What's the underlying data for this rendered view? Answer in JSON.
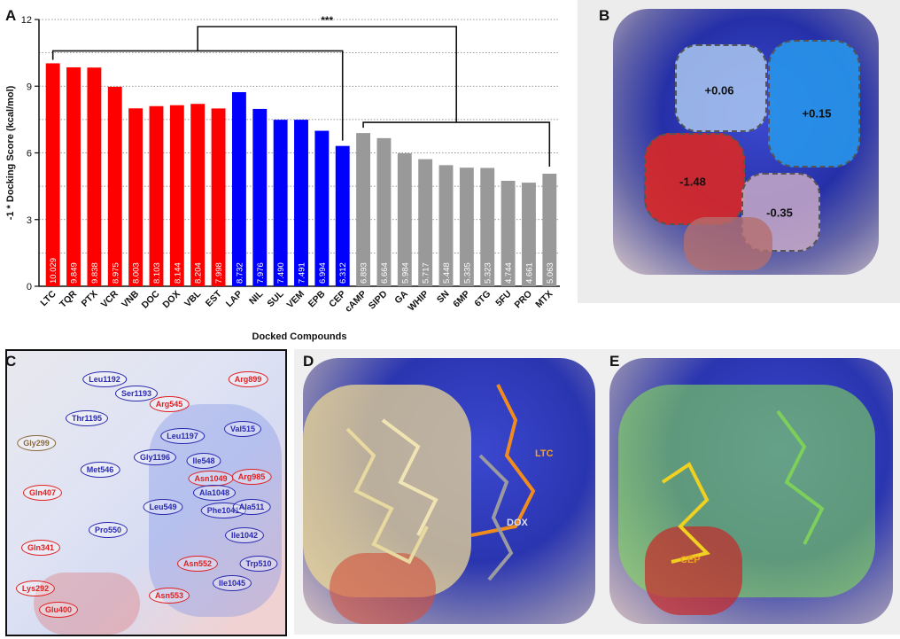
{
  "panels": {
    "a": "A",
    "b": "B",
    "c": "C",
    "d": "D",
    "e": "E"
  },
  "significance": "***",
  "chart_data": {
    "type": "bar",
    "ylabel": "-1 * Docking Score (kcal/mol)",
    "xlabel": "Docked Compounds",
    "ylim": [
      0,
      12
    ],
    "yticks": [
      "0",
      "3",
      "6",
      "9",
      "12"
    ],
    "grid": "horizontal dotted",
    "categories": [
      "LTC",
      "TQR",
      "PTX",
      "VCR",
      "VNB",
      "DOC",
      "DOX",
      "VBL",
      "EST",
      "LAP",
      "NIL",
      "SUL",
      "VEM",
      "EPB",
      "CEP",
      "cAMP",
      "SIPD",
      "GA",
      "WHIP",
      "SN",
      "6MP",
      "6TG",
      "5FU",
      "PRO",
      "MTX"
    ],
    "values": [
      10.029,
      9.849,
      9.838,
      8.975,
      8.003,
      8.103,
      8.144,
      8.204,
      7.998,
      8.732,
      7.976,
      7.49,
      7.491,
      6.994,
      6.312,
      6.893,
      6.664,
      5.984,
      5.717,
      5.448,
      5.335,
      5.323,
      4.744,
      4.661,
      5.063
    ],
    "value_labels": [
      "10.029",
      "9.849",
      "9.838",
      "8.975",
      "8.003",
      "8.103",
      "8.144",
      "8.204",
      "7.998",
      "8.732",
      "7.976",
      "7.490",
      "7.491",
      "6.994",
      "6.312",
      "6.893",
      "6.664",
      "5.984",
      "5.717",
      "5.448",
      "5.335",
      "5.323",
      "4.744",
      "4.661",
      "5.063"
    ],
    "group_colors": [
      "#ff0000",
      "#ff0000",
      "#ff0000",
      "#ff0000",
      "#ff0000",
      "#ff0000",
      "#ff0000",
      "#ff0000",
      "#ff0000",
      "#0000ff",
      "#0000ff",
      "#0000ff",
      "#0000ff",
      "#0000ff",
      "#0000ff",
      "#999999",
      "#999999",
      "#999999",
      "#999999",
      "#999999",
      "#999999",
      "#999999",
      "#999999",
      "#999999",
      "#999999"
    ]
  },
  "panel_b": {
    "charges": [
      "+0.06",
      "+0.15",
      "-1.48",
      "-0.35"
    ]
  },
  "panel_c": {
    "residues": [
      {
        "name": "Leu1192",
        "color": "#2a2ab0"
      },
      {
        "name": "Ser1193",
        "color": "#2a2ab0"
      },
      {
        "name": "Arg899",
        "color": "#e02020"
      },
      {
        "name": "Thr1195",
        "color": "#2a2ab0"
      },
      {
        "name": "Arg545",
        "color": "#e02020"
      },
      {
        "name": "Val515",
        "color": "#2a2ab0"
      },
      {
        "name": "Gly299",
        "color": "#8a6a40"
      },
      {
        "name": "Leu1197",
        "color": "#2a2ab0"
      },
      {
        "name": "Met546",
        "color": "#2a2ab0"
      },
      {
        "name": "Gly1196",
        "color": "#2a2ab0"
      },
      {
        "name": "Ile548",
        "color": "#2a2ab0"
      },
      {
        "name": "Asn1049",
        "color": "#e02020"
      },
      {
        "name": "Arg985",
        "color": "#e02020"
      },
      {
        "name": "Ala1048",
        "color": "#2a2ab0"
      },
      {
        "name": "Gln407",
        "color": "#e02020"
      },
      {
        "name": "Leu549",
        "color": "#2a2ab0"
      },
      {
        "name": "Phe1041",
        "color": "#2a2ab0"
      },
      {
        "name": "Ala511",
        "color": "#2a2ab0"
      },
      {
        "name": "Pro550",
        "color": "#2a2ab0"
      },
      {
        "name": "Ile1042",
        "color": "#2a2ab0"
      },
      {
        "name": "Gln341",
        "color": "#e02020"
      },
      {
        "name": "Asn552",
        "color": "#e02020"
      },
      {
        "name": "Trp510",
        "color": "#2a2ab0"
      },
      {
        "name": "Ile1045",
        "color": "#2a2ab0"
      },
      {
        "name": "Lys292",
        "color": "#e02020"
      },
      {
        "name": "Asn553",
        "color": "#e02020"
      },
      {
        "name": "Glu400",
        "color": "#e02020"
      }
    ]
  },
  "panel_d": {
    "labels": [
      "LTC",
      "DOX"
    ]
  },
  "panel_e": {
    "labels": [
      "CEP"
    ]
  }
}
